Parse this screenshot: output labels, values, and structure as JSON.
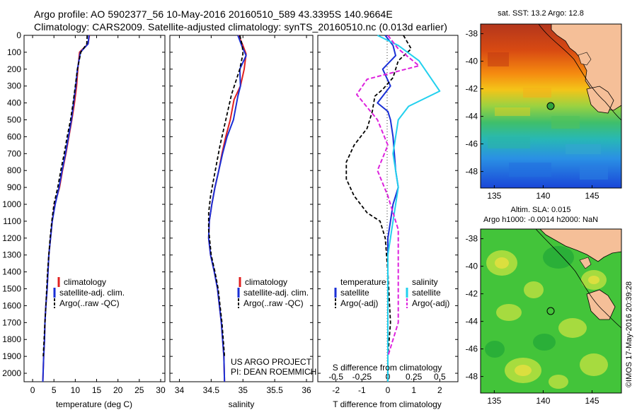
{
  "titles": {
    "line1": "Argo profile: AO 5902377_56 10-May-2016 20160510_589 43.3395S 140.9664E",
    "line2": "Climatology: CARS2009. Satellite-adjusted climatology: synTS_20160510.nc (0.013d earlier)"
  },
  "map_sst": {
    "title": "sat. SST: 13.2 Argo: 12.8",
    "yticks": [
      "-38",
      "-40",
      "-42",
      "-44",
      "-46",
      "-48"
    ],
    "xticks": [
      "135",
      "140",
      "145"
    ],
    "argo_lon": 140.9664,
    "argo_lat": -43.3395
  },
  "map_sla": {
    "title1": "Altim. SLA: 0.015",
    "title2": "Argo h1000: -0.0014 h2000: NaN",
    "yticks": [
      "-38",
      "-40",
      "-42",
      "-44",
      "-46",
      "-48"
    ],
    "xticks": [
      "135",
      "140",
      "145"
    ]
  },
  "side_stamp": "©IMOS 17-May-2016 20:39:28",
  "project_note": {
    "line1": "US ARGO PROJECT",
    "line2": "PI: DEAN ROEMMICH"
  },
  "colors": {
    "climatology": "#e02020",
    "satellite": "#1a2fd6",
    "argo": "#000000",
    "sal_satellite": "#22d0ee",
    "sal_argo": "#dd22dd",
    "map_border": "#000000"
  },
  "chart_data": [
    {
      "type": "line",
      "panel": "temperature",
      "xlabel": "temperature (deg C)",
      "ylabel": "",
      "xlim": [
        -2,
        31
      ],
      "ylim": [
        0,
        2050
      ],
      "xticks": [
        0,
        5,
        10,
        15,
        20,
        25,
        30
      ],
      "yticks": [
        0,
        100,
        200,
        300,
        400,
        500,
        600,
        700,
        800,
        900,
        1000,
        1100,
        1200,
        1300,
        1400,
        1500,
        1600,
        1700,
        1800,
        1900,
        2000
      ],
      "legend": [
        "climatology",
        "satellite-adj. clim.",
        "Argo(..raw -QC)"
      ],
      "series": [
        {
          "name": "climatology",
          "x": [
            13.3,
            13.0,
            11.0,
            10.6,
            10.3,
            9.8,
            9.2,
            8.5,
            7.8,
            7.0,
            6.3,
            5.2,
            4.6,
            4.2,
            3.8,
            3.6,
            3.4,
            3.1,
            2.9,
            2.8,
            2.6,
            2.4
          ],
          "depth": [
            0,
            50,
            100,
            200,
            300,
            400,
            500,
            600,
            700,
            800,
            900,
            1000,
            1100,
            1200,
            1300,
            1400,
            1500,
            1600,
            1700,
            1800,
            1900,
            2050
          ]
        },
        {
          "name": "satellite-adj. clim.",
          "x": [
            13.2,
            13.0,
            11.2,
            10.5,
            10.1,
            9.6,
            9.1,
            8.4,
            7.7,
            6.9,
            6.2,
            5.3,
            4.6,
            4.2,
            3.8,
            3.6,
            3.4,
            3.1,
            2.9,
            2.8,
            2.6,
            2.4
          ],
          "depth": [
            0,
            50,
            100,
            200,
            300,
            400,
            500,
            600,
            700,
            800,
            900,
            1000,
            1100,
            1200,
            1300,
            1400,
            1500,
            1600,
            1700,
            1800,
            1900,
            2050
          ]
        },
        {
          "name": "Argo(..raw -QC)",
          "x": [
            12.8,
            12.7,
            11.3,
            10.5,
            10.0,
            9.5,
            8.9,
            8.1,
            7.4,
            6.6,
            5.9,
            5.0,
            4.5,
            4.1,
            3.8,
            3.5,
            3.3,
            3.1,
            2.9,
            2.7,
            2.5
          ],
          "depth": [
            0,
            50,
            100,
            200,
            300,
            400,
            500,
            600,
            700,
            800,
            900,
            1000,
            1100,
            1200,
            1300,
            1400,
            1500,
            1600,
            1700,
            1800,
            1900
          ]
        }
      ]
    },
    {
      "type": "line",
      "panel": "salinity",
      "xlabel": "salinity",
      "xlim": [
        33.85,
        36.1
      ],
      "ylim": [
        0,
        2050
      ],
      "xticks": [
        34,
        34.5,
        35,
        35.5,
        36
      ],
      "xticklabels": [
        "34",
        "34.5",
        "35",
        "35.5",
        "36"
      ],
      "legend": [
        "climatology",
        "satellite-adj. clim.",
        "Argo(..raw -QC)"
      ],
      "series": [
        {
          "name": "climatology",
          "x": [
            34.93,
            35.0,
            35.05,
            35.02,
            34.96,
            34.86,
            34.8,
            34.73,
            34.67,
            34.62,
            34.56,
            34.51,
            34.47,
            34.46,
            34.49,
            34.55,
            34.6,
            34.63,
            34.66,
            34.68,
            34.7,
            34.71
          ],
          "depth": [
            0,
            60,
            110,
            200,
            300,
            380,
            500,
            600,
            700,
            800,
            900,
            1000,
            1100,
            1200,
            1300,
            1400,
            1500,
            1600,
            1700,
            1800,
            1900,
            2050
          ]
        },
        {
          "name": "satellite-adj. clim.",
          "x": [
            34.92,
            34.98,
            35.05,
            34.95,
            34.96,
            34.92,
            34.85,
            34.75,
            34.68,
            34.62,
            34.56,
            34.51,
            34.47,
            34.46,
            34.49,
            34.55,
            34.6,
            34.63,
            34.66,
            34.68,
            34.7,
            34.71
          ],
          "depth": [
            0,
            60,
            120,
            200,
            300,
            360,
            500,
            600,
            700,
            800,
            900,
            1000,
            1100,
            1200,
            1300,
            1400,
            1500,
            1600,
            1700,
            1800,
            1900,
            2050
          ]
        },
        {
          "name": "Argo(..raw -QC)",
          "x": [
            34.95,
            34.99,
            35.0,
            34.95,
            34.82,
            34.76,
            34.7,
            34.64,
            34.59,
            34.54,
            34.49,
            34.46,
            34.46,
            34.5,
            34.56,
            34.61,
            34.64,
            34.67,
            34.69,
            34.71
          ],
          "depth": [
            0,
            60,
            110,
            200,
            350,
            450,
            550,
            650,
            750,
            850,
            950,
            1050,
            1150,
            1300,
            1400,
            1500,
            1600,
            1700,
            1800,
            1900
          ]
        }
      ]
    },
    {
      "type": "line",
      "panel": "difference",
      "xlabel": "T difference from climatology",
      "xlabel_top": "S difference from climatology",
      "xlim": [
        -2.7,
        2.7
      ],
      "ylim": [
        0,
        2050
      ],
      "xticks_bottom": [
        -2,
        -1,
        0,
        1,
        2
      ],
      "xticks_top": [
        "-0.5",
        "-0.25",
        "0",
        "0.25",
        "0.5"
      ],
      "legend_temperature": {
        "header": "temperature",
        "items": [
          "satellite",
          "Argo(-adj)"
        ]
      },
      "legend_salinity": {
        "header": "salinity",
        "items": [
          "satellite",
          "Argo(-adj)"
        ]
      },
      "series": [
        {
          "name": "temperature satellite",
          "x": [
            -0.1,
            0.2,
            0.3,
            -0.2,
            0.1,
            -0.4,
            0.0,
            0.1,
            0.2,
            0.3,
            0.4,
            0.2,
            0.1,
            0.0,
            0.0,
            0.0,
            0.0,
            0.0,
            0.0
          ],
          "depth": [
            0,
            60,
            120,
            200,
            300,
            400,
            450,
            500,
            600,
            800,
            900,
            1000,
            1100,
            1200,
            1400,
            1600,
            1800,
            2000,
            2050
          ]
        },
        {
          "name": "temperature Argo(-adj)",
          "x": [
            0.6,
            0.9,
            0.4,
            0.2,
            -0.2,
            -0.5,
            -0.6,
            -0.8,
            -1.3,
            -1.6,
            -1.6,
            -1.3,
            -0.8,
            -0.3,
            -0.1,
            0.0,
            0.1,
            0.0
          ],
          "depth": [
            0,
            80,
            150,
            250,
            320,
            360,
            450,
            550,
            650,
            750,
            850,
            950,
            1050,
            1100,
            1200,
            1400,
            1700,
            1900
          ]
        },
        {
          "name": "salinity satellite",
          "x": [
            -0.1,
            0.1,
            0.3,
            0.5,
            0.2,
            0.1,
            0.05,
            0.1,
            0.05,
            0.0,
            0.0,
            0.0,
            0.0,
            0.0
          ],
          "depth": [
            0,
            60,
            150,
            330,
            420,
            500,
            700,
            900,
            1100,
            1300,
            1500,
            1700,
            1900,
            2050
          ]
        },
        {
          "name": "salinity Argo(-adj)",
          "x": [
            0.0,
            0.1,
            0.3,
            -0.2,
            -0.3,
            -0.1,
            0.0,
            -0.1,
            0.0,
            0.1,
            0.1,
            0.1,
            0.1,
            0.0
          ],
          "depth": [
            0,
            80,
            180,
            260,
            350,
            500,
            650,
            800,
            950,
            1150,
            1300,
            1500,
            1700,
            1900
          ]
        }
      ]
    }
  ]
}
